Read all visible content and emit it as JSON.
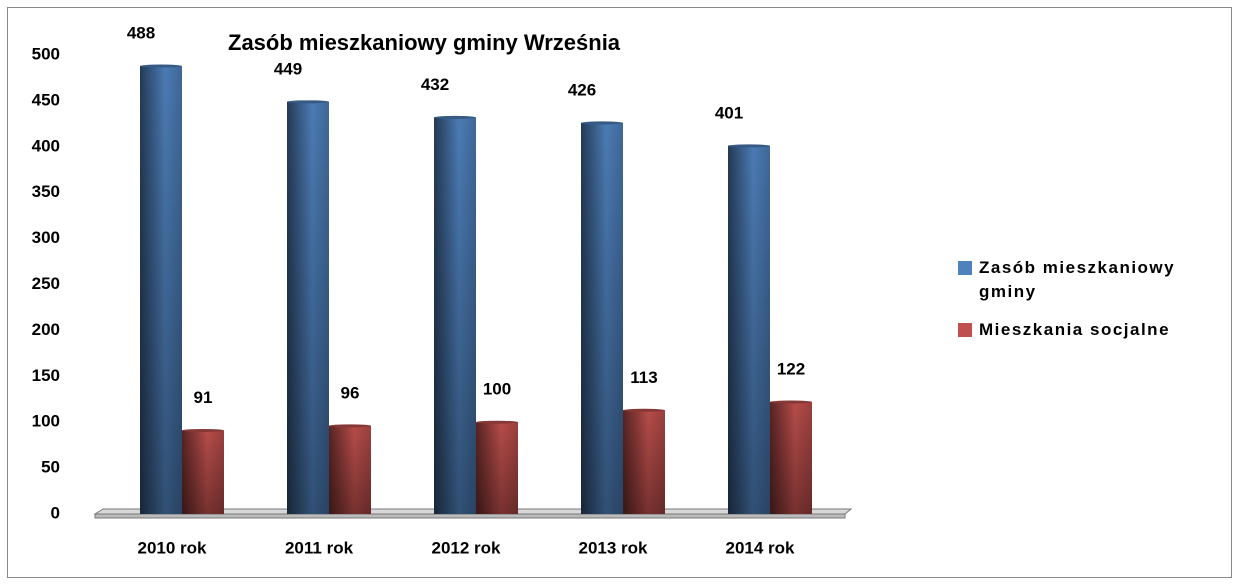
{
  "chart_data": {
    "type": "bar",
    "title": "Zasób mieszkaniowy gminy Września",
    "categories": [
      "2010 rok",
      "2011 rok",
      "2012 rok",
      "2013 rok",
      "2014 rok"
    ],
    "series": [
      {
        "name": "Zasób mieszkaniowy gminy",
        "color": "#4f81bd",
        "values": [
          488,
          449,
          432,
          426,
          401
        ]
      },
      {
        "name": "Mieszkania socjalne",
        "color": "#c0504d",
        "values": [
          91,
          96,
          100,
          113,
          122
        ]
      }
    ],
    "ylim": [
      0,
      500
    ],
    "yticks": [
      0,
      50,
      100,
      150,
      200,
      250,
      300,
      350,
      400,
      450,
      500
    ],
    "grid": false,
    "legend": "right"
  }
}
